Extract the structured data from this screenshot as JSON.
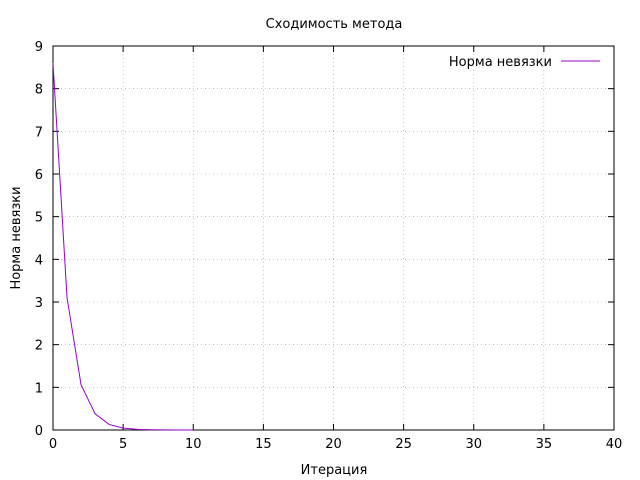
{
  "chart_data": {
    "type": "line",
    "title": "Сходимость метода",
    "xlabel": "Итерация",
    "ylabel": "Норма невязки",
    "xlim": [
      0,
      40
    ],
    "ylim": [
      0,
      9
    ],
    "xticks": [
      "0",
      "5",
      "10",
      "15",
      "20",
      "25",
      "30",
      "35",
      "40"
    ],
    "yticks": [
      "0",
      "1",
      "2",
      "3",
      "4",
      "5",
      "6",
      "7",
      "8",
      "9"
    ],
    "grid": true,
    "legend_position": "top-right",
    "series": [
      {
        "name": "Норма невязки",
        "color": "#9400d3",
        "x": [
          0,
          1,
          2,
          3,
          4,
          5,
          6,
          7,
          8,
          9,
          10
        ],
        "y": [
          8.6,
          3.1,
          1.06,
          0.38,
          0.13,
          0.045,
          0.016,
          0.006,
          0.002,
          0.0007,
          0.0002
        ]
      }
    ]
  }
}
